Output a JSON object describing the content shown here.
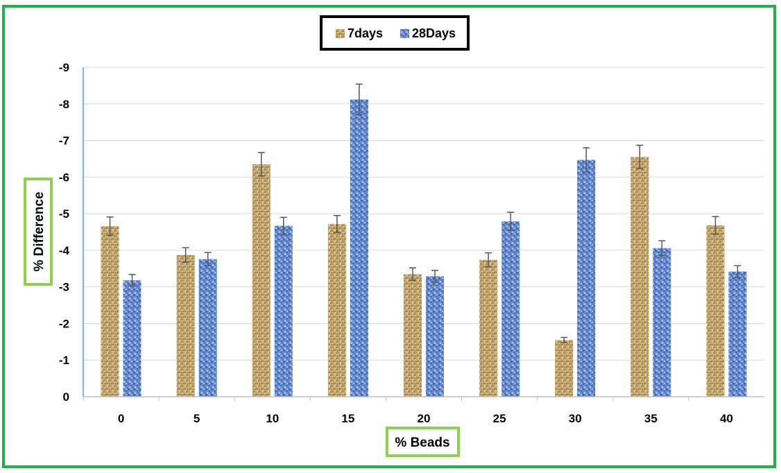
{
  "chart_data": {
    "type": "bar",
    "categories": [
      "0",
      "5",
      "10",
      "15",
      "20",
      "25",
      "30",
      "35",
      "40"
    ],
    "series": [
      {
        "name": "7days",
        "values": [
          -4.66,
          -3.87,
          -6.35,
          -4.72,
          -3.35,
          -3.74,
          -1.55,
          -6.55,
          -4.68
        ],
        "errors": [
          0.25,
          0.2,
          0.32,
          0.23,
          0.17,
          0.19,
          0.07,
          0.32,
          0.24
        ],
        "color": "#b99a63"
      },
      {
        "name": "28Days",
        "values": [
          -3.18,
          -3.76,
          -4.67,
          -8.12,
          -3.29,
          -4.79,
          -6.47,
          -4.06,
          -3.42
        ],
        "errors": [
          0.16,
          0.18,
          0.23,
          0.42,
          0.16,
          0.25,
          0.33,
          0.2,
          0.16
        ],
        "color": "#5b7fc4"
      }
    ],
    "title": "",
    "xlabel": "% Beads",
    "ylabel": "% Difference",
    "ylim": [
      0,
      -9
    ],
    "yticks": [
      "0",
      "-1",
      "-2",
      "-3",
      "-4",
      "-5",
      "-6",
      "-7",
      "-8",
      "-9"
    ],
    "y_reversed": true,
    "grid": true,
    "legend_position": "top-center"
  },
  "colors": {
    "frame_border": "#1fb24b",
    "title_box_border": "#8fd14f",
    "gridline": "#d9d9d9",
    "axis_line": "#5b9bd5",
    "error_bar": "#555555"
  }
}
